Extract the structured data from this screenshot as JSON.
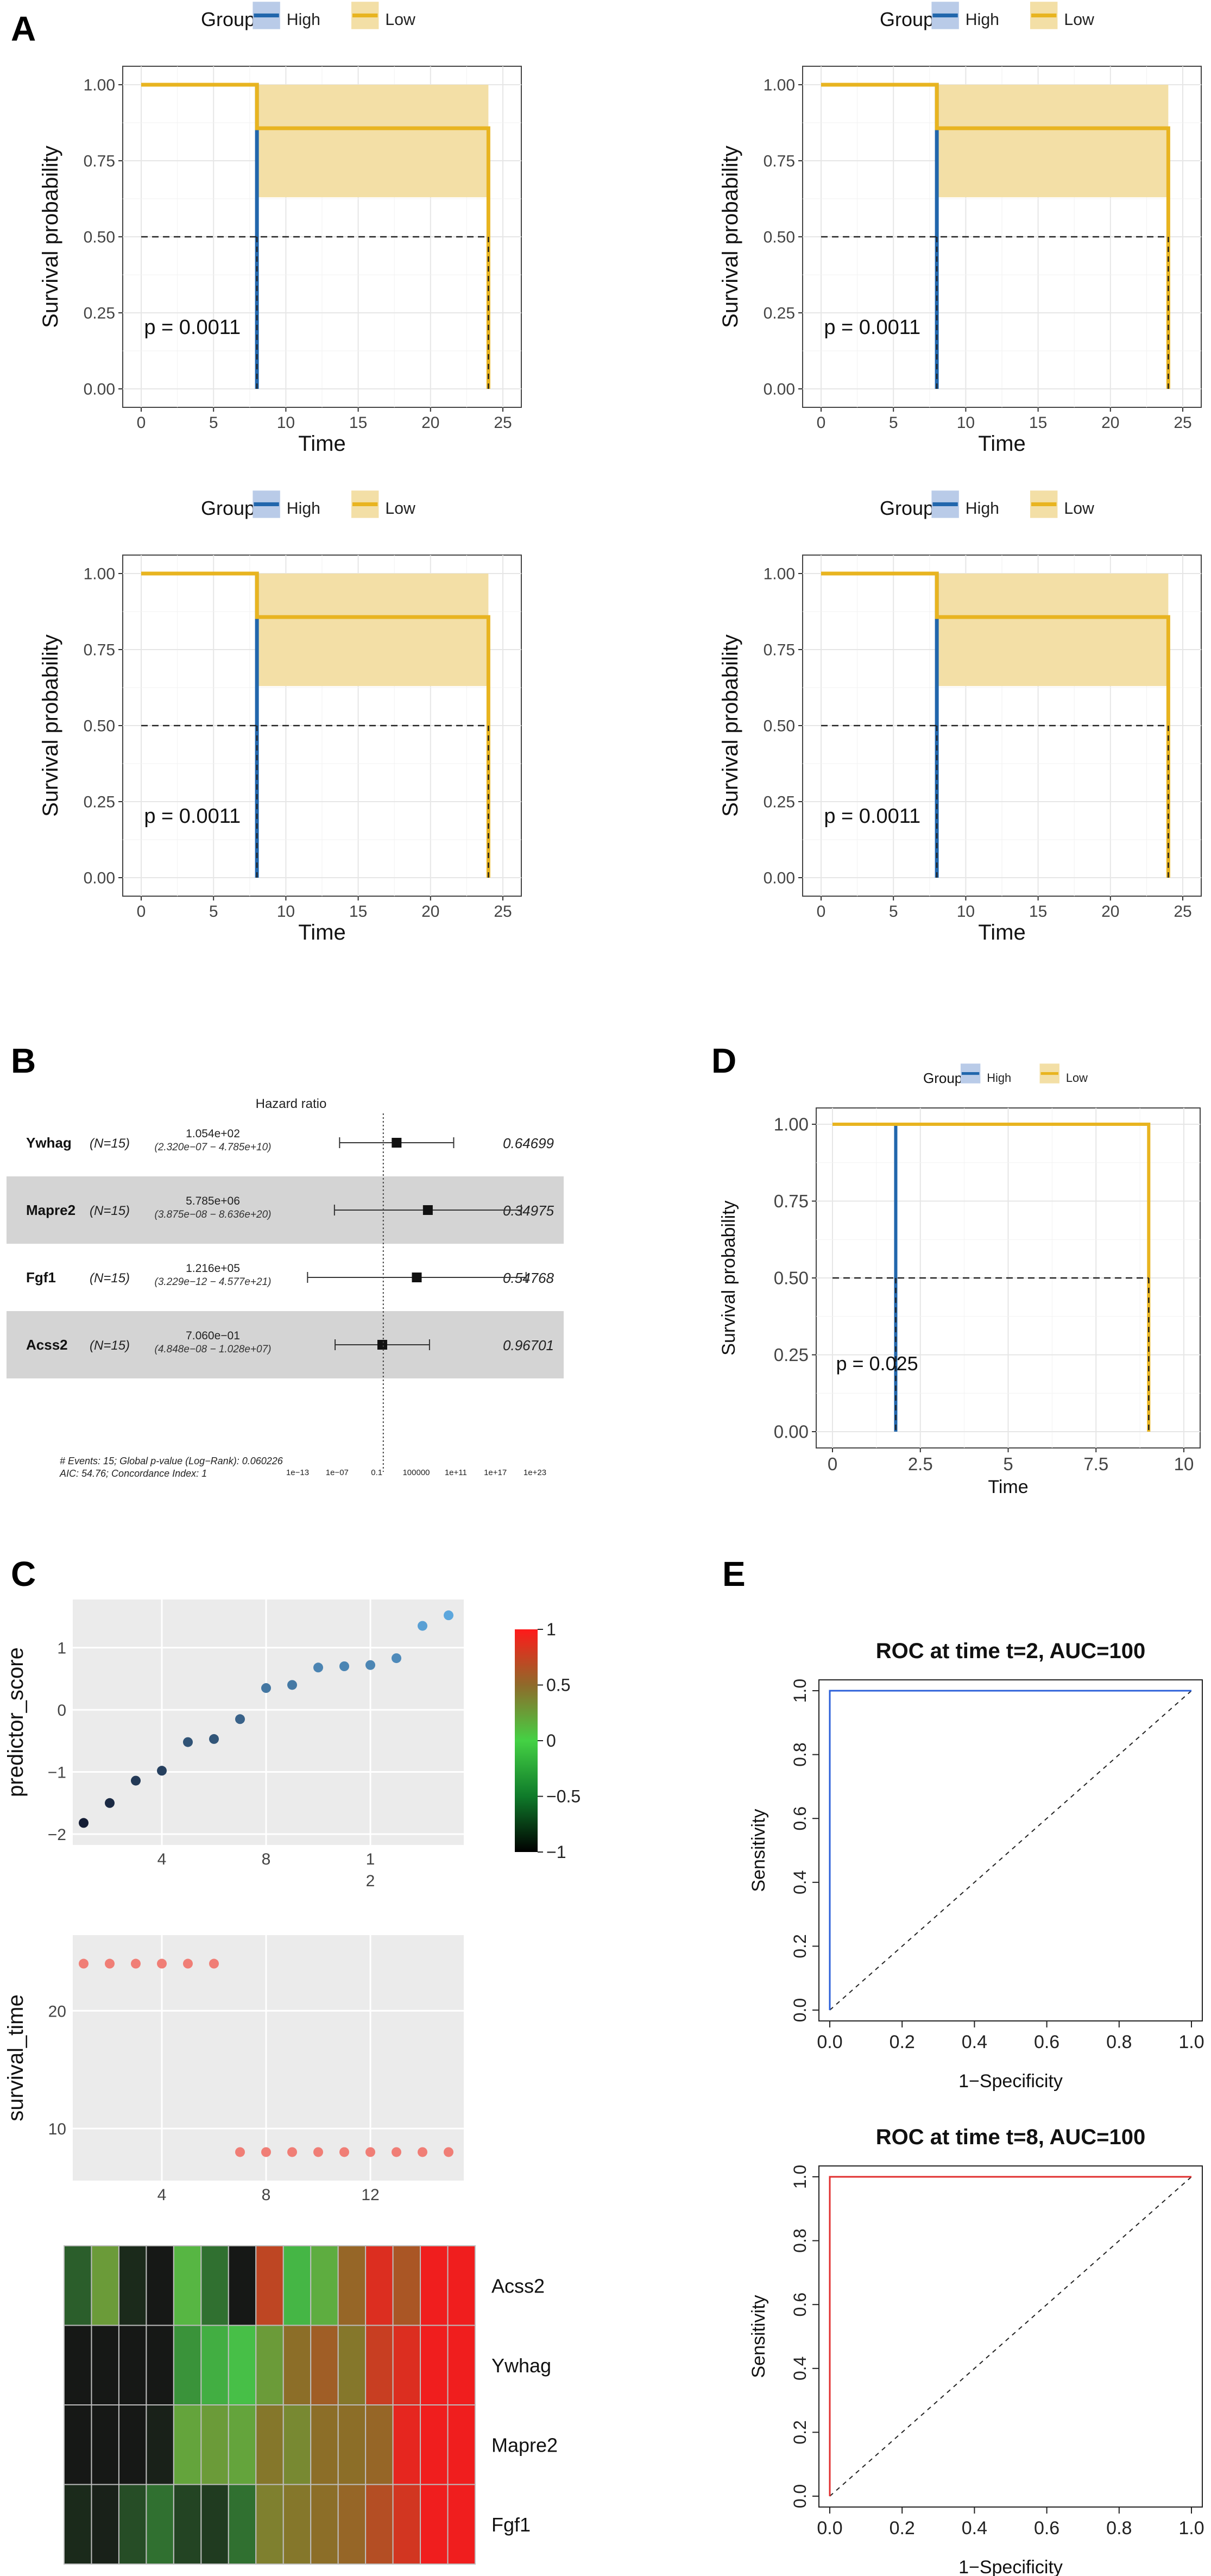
{
  "panel_labels": [
    "A",
    "B",
    "C",
    "D",
    "E"
  ],
  "chart_data": [
    {
      "id": "km_a1",
      "panel": "A",
      "type": "line",
      "legend_title": "Group",
      "legend_items": [
        "High",
        "Low"
      ],
      "xlabel": "Time",
      "ylabel": "Survival probability",
      "xlim": [
        0,
        25
      ],
      "ylim": [
        0,
        1
      ],
      "xticks": [
        "0",
        "5",
        "10",
        "15",
        "20",
        "25"
      ],
      "yticks": [
        "0.00",
        "0.25",
        "0.50",
        "0.75",
        "1.00"
      ],
      "annotation": "p = 0.0011",
      "series": [
        {
          "name": "High",
          "color": "#2166ac",
          "x": [
            0,
            8,
            8
          ],
          "y": [
            1,
            1,
            0
          ]
        },
        {
          "name": "Low",
          "color": "#e8b420",
          "x": [
            0,
            8,
            8,
            24,
            24
          ],
          "y": [
            1,
            1,
            0.857,
            0.857,
            0
          ]
        }
      ],
      "ci_band": {
        "x": [
          8,
          24
        ],
        "lower": 0.63,
        "upper": 1.0,
        "color": "#f3dfa6"
      },
      "median_line": {
        "y": 0.5,
        "x_end": 24,
        "drops": [
          8,
          24
        ]
      }
    },
    {
      "id": "km_a2",
      "panel": "A",
      "type": "line",
      "legend_title": "Group",
      "legend_items": [
        "High",
        "Low"
      ],
      "xlabel": "Time",
      "ylabel": "Survival probability",
      "xlim": [
        0,
        25
      ],
      "ylim": [
        0,
        1
      ],
      "xticks": [
        "0",
        "5",
        "10",
        "15",
        "20",
        "25"
      ],
      "yticks": [
        "0.00",
        "0.25",
        "0.50",
        "0.75",
        "1.00"
      ],
      "annotation": "p = 0.0011",
      "series": [
        {
          "name": "High",
          "color": "#2166ac",
          "x": [
            0,
            8,
            8
          ],
          "y": [
            1,
            1,
            0
          ]
        },
        {
          "name": "Low",
          "color": "#e8b420",
          "x": [
            0,
            8,
            8,
            24,
            24
          ],
          "y": [
            1,
            1,
            0.857,
            0.857,
            0
          ]
        }
      ],
      "ci_band": {
        "x": [
          8,
          24
        ],
        "lower": 0.63,
        "upper": 1.0,
        "color": "#f3dfa6"
      },
      "median_line": {
        "y": 0.5,
        "x_end": 24,
        "drops": [
          8,
          24
        ]
      }
    },
    {
      "id": "km_a3",
      "panel": "A",
      "type": "line",
      "legend_title": "Group",
      "legend_items": [
        "High",
        "Low"
      ],
      "xlabel": "Time",
      "ylabel": "Survival probability",
      "xlim": [
        0,
        25
      ],
      "ylim": [
        0,
        1
      ],
      "xticks": [
        "0",
        "5",
        "10",
        "15",
        "20",
        "25"
      ],
      "yticks": [
        "0.00",
        "0.25",
        "0.50",
        "0.75",
        "1.00"
      ],
      "annotation": "p = 0.0011",
      "series": [
        {
          "name": "High",
          "color": "#2166ac",
          "x": [
            0,
            8,
            8
          ],
          "y": [
            1,
            1,
            0
          ]
        },
        {
          "name": "Low",
          "color": "#e8b420",
          "x": [
            0,
            8,
            8,
            24,
            24
          ],
          "y": [
            1,
            1,
            0.857,
            0.857,
            0
          ]
        }
      ],
      "ci_band": {
        "x": [
          8,
          24
        ],
        "lower": 0.63,
        "upper": 1.0,
        "color": "#f3dfa6"
      },
      "median_line": {
        "y": 0.5,
        "x_end": 24,
        "drops": [
          8,
          24
        ]
      }
    },
    {
      "id": "km_a4",
      "panel": "A",
      "type": "line",
      "legend_title": "Group",
      "legend_items": [
        "High",
        "Low"
      ],
      "xlabel": "Time",
      "ylabel": "Survival probability",
      "xlim": [
        0,
        25
      ],
      "ylim": [
        0,
        1
      ],
      "xticks": [
        "0",
        "5",
        "10",
        "15",
        "20",
        "25"
      ],
      "yticks": [
        "0.00",
        "0.25",
        "0.50",
        "0.75",
        "1.00"
      ],
      "annotation": "p = 0.0011",
      "series": [
        {
          "name": "High",
          "color": "#2166ac",
          "x": [
            0,
            8,
            8
          ],
          "y": [
            1,
            1,
            0
          ]
        },
        {
          "name": "Low",
          "color": "#e8b420",
          "x": [
            0,
            8,
            8,
            24,
            24
          ],
          "y": [
            1,
            1,
            0.857,
            0.857,
            0
          ]
        }
      ],
      "ci_band": {
        "x": [
          8,
          24
        ],
        "lower": 0.63,
        "upper": 1.0,
        "color": "#f3dfa6"
      },
      "median_line": {
        "y": 0.5,
        "x_end": 24,
        "drops": [
          8,
          24
        ]
      }
    },
    {
      "id": "forest_b",
      "panel": "B",
      "type": "forest",
      "title": "Hazard ratio",
      "rows": [
        {
          "gene": "Ywhag",
          "n": "(N=15)",
          "hr": "1.054e+02",
          "ci": "(2.320e−07 − 4.785e+10)",
          "p": "0.64699",
          "log10_hr": 2.02,
          "log10_lo": -6.63,
          "log10_hi": 10.68
        },
        {
          "gene": "Mapre2",
          "n": "(N=15)",
          "hr": "5.785e+06",
          "ci": "(3.875e−08 − 8.636e+20)",
          "p": "0.34975",
          "log10_hr": 6.76,
          "log10_lo": -7.41,
          "log10_hi": 20.94
        },
        {
          "gene": "Fgf1",
          "n": "(N=15)",
          "hr": "1.216e+05",
          "ci": "(3.229e−12 − 4.577e+21)",
          "p": "0.54768",
          "log10_hr": 5.08,
          "log10_lo": -11.49,
          "log10_hi": 21.66
        },
        {
          "gene": "Acss2",
          "n": "(N=15)",
          "hr": "7.060e−01",
          "ci": "(4.848e−08 − 1.028e+07)",
          "p": "0.96701",
          "log10_hr": -0.15,
          "log10_lo": -7.31,
          "log10_hi": 7.01
        }
      ],
      "xticks": [
        "1e−13",
        "1e−07",
        "0.1",
        "100000",
        "1e+11",
        "1e+17",
        "1e+23"
      ],
      "xtick_log10": [
        -13,
        -7,
        -1,
        5,
        11,
        17,
        23
      ],
      "footnote_1": "# Events: 15; Global p-value (Log−Rank): 0.060226",
      "footnote_2": "AIC: 54.76; Concordance Index: 1"
    },
    {
      "id": "km_d",
      "panel": "D",
      "type": "line",
      "legend_title": "Group",
      "legend_items": [
        "High",
        "Low"
      ],
      "xlabel": "Time",
      "ylabel": "Survival probability",
      "xlim": [
        0,
        10
      ],
      "ylim": [
        0,
        1
      ],
      "xticks": [
        "0",
        "2.5",
        "5",
        "7.5",
        "10"
      ],
      "yticks": [
        "0.00",
        "0.25",
        "0.50",
        "0.75",
        "1.00"
      ],
      "annotation": "p = 0.025",
      "series": [
        {
          "name": "High",
          "color": "#2166ac",
          "x": [
            0,
            1.8,
            1.8
          ],
          "y": [
            1,
            1,
            0
          ]
        },
        {
          "name": "Low",
          "color": "#e8b420",
          "x": [
            0,
            9,
            9
          ],
          "y": [
            1,
            1,
            0
          ]
        }
      ],
      "median_line": {
        "y": 0.5,
        "x_end": 9,
        "drops": [
          1.8,
          9
        ]
      }
    },
    {
      "id": "scatter_c1",
      "panel": "C",
      "type": "scatter",
      "ylabel": "predictor_score",
      "xticks": [
        "4",
        "8",
        "1",
        "2"
      ],
      "yticks": [
        "−2",
        "−1",
        "0",
        "1"
      ],
      "ylim": [
        -2,
        1.6
      ],
      "x": [
        1,
        2,
        3,
        4,
        5,
        6,
        7,
        8,
        9,
        10,
        11,
        12,
        13,
        14,
        15
      ],
      "y": [
        -1.82,
        -1.5,
        -1.14,
        -0.98,
        -0.52,
        -0.47,
        -0.15,
        0.35,
        0.4,
        0.68,
        0.7,
        0.72,
        0.83,
        1.35,
        1.52
      ],
      "colorbar": {
        "labels": [
          "1",
          "0.5",
          "0",
          "−0.5",
          "−1"
        ],
        "range": [
          -1,
          1
        ]
      }
    },
    {
      "id": "scatter_c2",
      "panel": "C",
      "type": "scatter",
      "ylabel": "survival_time",
      "xticks": [
        "4",
        "8",
        "12"
      ],
      "yticks": [
        "10",
        "20"
      ],
      "ylim": [
        6.5,
        25.5
      ],
      "x": [
        1,
        2,
        3,
        4,
        5,
        6,
        7,
        8,
        9,
        10,
        11,
        12,
        13,
        14,
        15
      ],
      "y": [
        24,
        24,
        24,
        24,
        24,
        24,
        8,
        8,
        8,
        8,
        8,
        8,
        8,
        8,
        8
      ],
      "color": "#f07e76"
    },
    {
      "id": "heatmap_c",
      "panel": "C",
      "type": "heatmap",
      "rows": [
        "Acss2",
        "Ywhag",
        "Mapre2",
        "Fgf1"
      ],
      "values": [
        [
          -0.6,
          0.25,
          -0.9,
          -1.0,
          0.1,
          -0.5,
          -1.0,
          0.75,
          -0.1,
          0.15,
          0.55,
          0.9,
          0.65,
          1.0,
          1.0
        ],
        [
          -1.0,
          -1.0,
          -1.0,
          -1.0,
          -0.3,
          -0.15,
          -0.05,
          0.25,
          0.5,
          0.6,
          0.45,
          0.8,
          0.9,
          1.0,
          1.0
        ],
        [
          -1.0,
          -1.0,
          -1.0,
          -0.95,
          0.2,
          0.25,
          0.2,
          0.45,
          0.35,
          0.5,
          0.5,
          0.55,
          0.95,
          1.0,
          1.0
        ],
        [
          -0.9,
          -0.95,
          -0.7,
          -0.5,
          -0.75,
          -0.8,
          -0.5,
          0.4,
          0.45,
          0.5,
          0.55,
          0.7,
          0.85,
          1.0,
          1.0
        ]
      ]
    },
    {
      "id": "roc_e1",
      "panel": "E",
      "type": "line",
      "title": "ROC at time t=2, AUC=100",
      "xlabel": "1−Specificity",
      "ylabel": "Sensitivity",
      "xticks": [
        "0.0",
        "0.2",
        "0.4",
        "0.6",
        "0.8",
        "1.0"
      ],
      "yticks": [
        "0.0",
        "0.2",
        "0.4",
        "0.6",
        "0.8",
        "1.0"
      ],
      "xlim": [
        0,
        1
      ],
      "ylim": [
        0,
        1
      ],
      "series": [
        {
          "name": "ROC",
          "color": "#2b5fd9",
          "x": [
            0,
            0,
            1
          ],
          "y": [
            0,
            1,
            1
          ]
        }
      ]
    },
    {
      "id": "roc_e2",
      "panel": "E",
      "type": "line",
      "title": "ROC at time t=8, AUC=100",
      "xlabel": "1−Specificity",
      "ylabel": "Sensitivity",
      "xticks": [
        "0.0",
        "0.2",
        "0.4",
        "0.6",
        "0.8",
        "1.0"
      ],
      "yticks": [
        "0.0",
        "0.2",
        "0.4",
        "0.6",
        "0.8",
        "1.0"
      ],
      "xlim": [
        0,
        1
      ],
      "ylim": [
        0,
        1
      ],
      "series": [
        {
          "name": "ROC",
          "color": "#e03030",
          "x": [
            0,
            0,
            1
          ],
          "y": [
            0,
            1,
            1
          ]
        }
      ]
    }
  ],
  "colors": {
    "high": "#2166ac",
    "low": "#e8b420",
    "ci_band": "#f3dfa6",
    "grid": "#e6e6e6",
    "scatter_panel_bg": "#ebebeb",
    "forest_stripe": "#d4d4d4"
  }
}
